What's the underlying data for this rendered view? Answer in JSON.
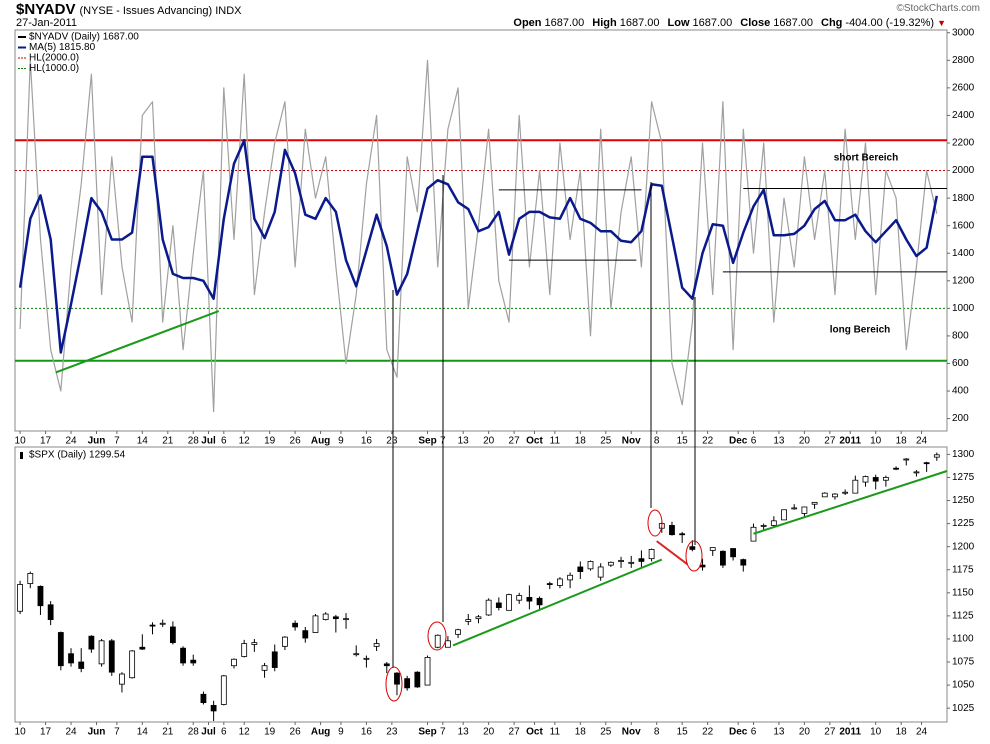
{
  "header": {
    "symbol": "$NYADV",
    "description": "(NYSE - Issues Advancing) INDX",
    "date": "27-Jan-2011",
    "copyright": "©StockCharts.com",
    "quote": [
      {
        "label": "Open",
        "value": "1687.00"
      },
      {
        "label": "High",
        "value": "1687.00"
      },
      {
        "label": "Low",
        "value": "1687.00"
      },
      {
        "label": "Close",
        "value": "1687.00"
      },
      {
        "label": "Chg",
        "value": "-404.00 (-19.32%)"
      }
    ]
  },
  "chart_data": [
    {
      "type": "line",
      "x": [
        0,
        2,
        4,
        6,
        8,
        10,
        12,
        14,
        16,
        18,
        20,
        22,
        24,
        26,
        28,
        30,
        32,
        34,
        36,
        38,
        40,
        42,
        44,
        46,
        48,
        50,
        52,
        54,
        56,
        58,
        60,
        62,
        64,
        66,
        68,
        70,
        72,
        74,
        76,
        78,
        80,
        82,
        84,
        86,
        88,
        90,
        92,
        94,
        96,
        98,
        100,
        102,
        104,
        106,
        108,
        110,
        112,
        114,
        116,
        118,
        120,
        122,
        124,
        126,
        128,
        130,
        132,
        134,
        136,
        138,
        140,
        142,
        144,
        146,
        148,
        150,
        152,
        154,
        156,
        158,
        160,
        162,
        164,
        166,
        168,
        170,
        172,
        174,
        176,
        178,
        180
      ],
      "series": [
        {
          "name": "$NYADV (Daily) 1687.00",
          "color": "#a0a0a0",
          "values": [
            850,
            2800,
            1500,
            700,
            400,
            1300,
            1900,
            2700,
            1100,
            2100,
            1300,
            900,
            2400,
            2500,
            900,
            1600,
            700,
            1400,
            2000,
            250,
            2600,
            1500,
            2700,
            1100,
            1700,
            2200,
            2500,
            1300,
            2300,
            1800,
            2100,
            1300,
            600,
            1100,
            1900,
            2400,
            700,
            500,
            2100,
            1700,
            2800,
            1300,
            2300,
            2600,
            1000,
            1600,
            2300,
            1200,
            900,
            2400,
            1300,
            2000,
            1100,
            2200,
            1500,
            2000,
            800,
            2300,
            1000,
            1700,
            2100,
            1300,
            2500,
            2200,
            600,
            300,
            900,
            2200,
            1100,
            2500,
            700,
            2300,
            1400,
            2200,
            900,
            1800,
            1300,
            2100,
            1500,
            2000,
            1100,
            2300,
            1500,
            2200,
            1100,
            2000,
            1800,
            700,
            1300,
            2000,
            1687
          ]
        },
        {
          "name": "MA(5) 1815.80",
          "color": "#0a1a8c",
          "values": [
            1150,
            1650,
            1820,
            1500,
            680,
            1030,
            1400,
            1800,
            1700,
            1500,
            1500,
            1550,
            2100,
            2100,
            1500,
            1250,
            1220,
            1220,
            1200,
            1070,
            1650,
            2050,
            2220,
            1650,
            1510,
            1700,
            2150,
            1980,
            1680,
            1650,
            1800,
            1700,
            1350,
            1160,
            1420,
            1680,
            1450,
            1100,
            1250,
            1560,
            1870,
            1930,
            1900,
            1770,
            1720,
            1560,
            1590,
            1700,
            1390,
            1650,
            1700,
            1700,
            1660,
            1650,
            1800,
            1650,
            1620,
            1560,
            1560,
            1490,
            1480,
            1560,
            1900,
            1890,
            1520,
            1150,
            1070,
            1400,
            1610,
            1600,
            1330,
            1550,
            1740,
            1860,
            1530,
            1530,
            1540,
            1600,
            1720,
            1780,
            1640,
            1640,
            1680,
            1560,
            1480,
            1560,
            1640,
            1500,
            1380,
            1440,
            1815.8
          ]
        }
      ],
      "hlines": [
        {
          "name": "HL(2000.0)",
          "value": 2000,
          "color": "#cc0000",
          "style": "dotted"
        },
        {
          "name": "HL(1000.0)",
          "value": 1000,
          "color": "#008000",
          "style": "dotted"
        },
        {
          "value": 2220,
          "color": "#dd0000",
          "style": "solid"
        },
        {
          "value": 620,
          "color": "#119911",
          "style": "solid"
        }
      ],
      "segments": [
        {
          "x": [
            7,
            39
          ],
          "y": [
            535,
            980
          ],
          "color": "#1a9a1a"
        },
        {
          "x": [
            94,
            122
          ],
          "y": [
            1860,
            1860
          ],
          "color": "#000000"
        },
        {
          "x": [
            96,
            121
          ],
          "y": [
            1350,
            1350
          ],
          "color": "#000000"
        },
        {
          "x": [
            142,
            182
          ],
          "y": [
            1870,
            1870
          ],
          "color": "#000000"
        },
        {
          "x": [
            138,
            182
          ],
          "y": [
            1265,
            1265
          ],
          "color": "#000000"
        }
      ],
      "annotations": [
        {
          "text": "short Bereich",
          "color": "#cc0000"
        },
        {
          "text": "long Bereich",
          "color": "#118811"
        }
      ],
      "xlim": [
        -1,
        182
      ],
      "ylim": [
        110,
        3020
      ],
      "yticks": [
        200,
        400,
        600,
        800,
        1000,
        1200,
        1400,
        1600,
        1800,
        2000,
        2200,
        2400,
        2600,
        2800,
        3000
      ],
      "xticks": [
        {
          "value": 0,
          "label": "10"
        },
        {
          "value": 5,
          "label": "17"
        },
        {
          "value": 10,
          "label": "24"
        },
        {
          "value": 15,
          "label": "Jun"
        },
        {
          "value": 19,
          "label": "7"
        },
        {
          "value": 24,
          "label": "14"
        },
        {
          "value": 29,
          "label": "21"
        },
        {
          "value": 34,
          "label": "28"
        },
        {
          "value": 37,
          "label": "Jul"
        },
        {
          "value": 40,
          "label": "6"
        },
        {
          "value": 44,
          "label": "12"
        },
        {
          "value": 49,
          "label": "19"
        },
        {
          "value": 54,
          "label": "26"
        },
        {
          "value": 59,
          "label": "Aug"
        },
        {
          "value": 63,
          "label": "9"
        },
        {
          "value": 68,
          "label": "16"
        },
        {
          "value": 73,
          "label": "23"
        },
        {
          "value": 80,
          "label": "Sep"
        },
        {
          "value": 83,
          "label": "7"
        },
        {
          "value": 87,
          "label": "13"
        },
        {
          "value": 92,
          "label": "20"
        },
        {
          "value": 97,
          "label": "27"
        },
        {
          "value": 101,
          "label": "Oct"
        },
        {
          "value": 105,
          "label": "11"
        },
        {
          "value": 110,
          "label": "18"
        },
        {
          "value": 115,
          "label": "25"
        },
        {
          "value": 120,
          "label": "Nov"
        },
        {
          "value": 125,
          "label": "8"
        },
        {
          "value": 130,
          "label": "15"
        },
        {
          "value": 135,
          "label": "22"
        },
        {
          "value": 141,
          "label": "Dec"
        },
        {
          "value": 144,
          "label": "6"
        },
        {
          "value": 149,
          "label": "13"
        },
        {
          "value": 154,
          "label": "20"
        },
        {
          "value": 159,
          "label": "27"
        },
        {
          "value": 163,
          "label": "2011"
        },
        {
          "value": 168,
          "label": "10"
        },
        {
          "value": 173,
          "label": "18"
        },
        {
          "value": 177,
          "label": "24"
        }
      ]
    },
    {
      "type": "candlestick",
      "name": "$SPX (Daily) 1299.54",
      "x": [
        0,
        2,
        4,
        6,
        8,
        10,
        12,
        14,
        16,
        18,
        20,
        22,
        24,
        26,
        28,
        30,
        32,
        34,
        36,
        38,
        40,
        42,
        44,
        46,
        48,
        50,
        52,
        54,
        56,
        58,
        60,
        62,
        64,
        66,
        68,
        70,
        72,
        74,
        76,
        78,
        80,
        82,
        84,
        86,
        88,
        90,
        92,
        94,
        96,
        98,
        100,
        102,
        104,
        106,
        108,
        110,
        112,
        114,
        116,
        118,
        120,
        122,
        124,
        126,
        128,
        130,
        132,
        134,
        136,
        138,
        140,
        142,
        144,
        146,
        148,
        150,
        152,
        154,
        156,
        158,
        160,
        162,
        164,
        166,
        168,
        170,
        172,
        174,
        176,
        178,
        180
      ],
      "open": [
        1130,
        1160,
        1157,
        1137,
        1107,
        1084,
        1075,
        1103,
        1073,
        1098,
        1051,
        1058,
        1091,
        1115,
        1116,
        1113,
        1090,
        1077,
        1040,
        1028,
        1029,
        1071,
        1081,
        1094,
        1066,
        1086,
        1092,
        1117,
        1109,
        1107,
        1121,
        1124,
        1122,
        1084,
        1079,
        1092,
        1073,
        1063,
        1057,
        1064,
        1050,
        1091,
        1091,
        1105,
        1119,
        1122,
        1126,
        1139,
        1131,
        1142,
        1145,
        1144,
        1160,
        1158,
        1164,
        1178,
        1176,
        1167,
        1180,
        1185,
        1183,
        1187,
        1187,
        1220,
        1223,
        1214,
        1200,
        1180,
        1196,
        1195,
        1198,
        1186,
        1206,
        1223,
        1223,
        1229,
        1241,
        1236,
        1246,
        1254,
        1254,
        1259,
        1258,
        1270,
        1275,
        1272,
        1285,
        1294,
        1280,
        1291,
        1297
      ],
      "high": [
        1163,
        1173,
        1158,
        1141,
        1108,
        1090,
        1090,
        1104,
        1100,
        1100,
        1064,
        1088,
        1105,
        1118,
        1121,
        1119,
        1092,
        1083,
        1043,
        1033,
        1061,
        1079,
        1099,
        1100,
        1074,
        1094,
        1103,
        1120,
        1113,
        1127,
        1129,
        1126,
        1128,
        1093,
        1082,
        1100,
        1075,
        1064,
        1060,
        1065,
        1082,
        1105,
        1103,
        1111,
        1127,
        1126,
        1144,
        1145,
        1149,
        1150,
        1158,
        1146,
        1162,
        1167,
        1172,
        1184,
        1185,
        1182,
        1184,
        1189,
        1190,
        1196,
        1198,
        1227,
        1227,
        1216,
        1207,
        1187,
        1199,
        1196,
        1198,
        1187,
        1225,
        1225,
        1233,
        1240,
        1246,
        1243,
        1248,
        1259,
        1258,
        1262,
        1277,
        1277,
        1278,
        1277,
        1287,
        1296,
        1283,
        1292,
        1302
      ],
      "low": [
        1127,
        1155,
        1126,
        1115,
        1066,
        1070,
        1064,
        1085,
        1070,
        1060,
        1042,
        1057,
        1088,
        1105,
        1113,
        1094,
        1071,
        1071,
        1029,
        1011,
        1028,
        1068,
        1080,
        1086,
        1058,
        1065,
        1088,
        1109,
        1096,
        1107,
        1120,
        1107,
        1111,
        1081,
        1069,
        1087,
        1063,
        1039,
        1044,
        1047,
        1050,
        1090,
        1091,
        1101,
        1115,
        1117,
        1125,
        1131,
        1131,
        1138,
        1132,
        1131,
        1154,
        1155,
        1155,
        1165,
        1174,
        1163,
        1178,
        1177,
        1177,
        1177,
        1184,
        1215,
        1212,
        1204,
        1195,
        1174,
        1190,
        1177,
        1185,
        1173,
        1206,
        1218,
        1222,
        1229,
        1240,
        1232,
        1241,
        1254,
        1251,
        1256,
        1258,
        1265,
        1262,
        1265,
        1283,
        1288,
        1276,
        1281,
        1293
      ],
      "close": [
        1159,
        1171,
        1136,
        1121,
        1071,
        1074,
        1068,
        1089,
        1098,
        1064,
        1062,
        1087,
        1089,
        1114,
        1117,
        1096,
        1074,
        1074,
        1031,
        1022,
        1060,
        1078,
        1095,
        1096,
        1071,
        1069,
        1102,
        1113,
        1101,
        1125,
        1127,
        1122,
        1122,
        1084,
        1079,
        1095,
        1071,
        1051,
        1047,
        1048,
        1080,
        1104,
        1098,
        1110,
        1121,
        1124,
        1142,
        1134,
        1148,
        1147,
        1141,
        1137,
        1159,
        1165,
        1169,
        1173,
        1184,
        1178,
        1183,
        1185,
        1183,
        1184,
        1197,
        1225,
        1213,
        1213,
        1197,
        1178,
        1199,
        1180,
        1189,
        1180,
        1221,
        1223,
        1228,
        1240,
        1242,
        1243,
        1248,
        1258,
        1257,
        1259,
        1272,
        1276,
        1271,
        1275,
        1284,
        1295,
        1281,
        1290,
        1299.54
      ],
      "segments": [
        {
          "x": [
            85,
            126
          ],
          "y": [
            1093,
            1186
          ],
          "color": "#1a9a1a"
        },
        {
          "x": [
            144,
            182
          ],
          "y": [
            1214,
            1282
          ],
          "color": "#1a9a1a"
        },
        {
          "x": [
            125,
            131
          ],
          "y": [
            1206,
            1181
          ],
          "color": "#dd2222"
        }
      ],
      "xlim": [
        -1,
        182
      ],
      "ylim": [
        1010,
        1308
      ],
      "yticks": [
        1025,
        1050,
        1075,
        1100,
        1125,
        1150,
        1175,
        1200,
        1225,
        1250,
        1275,
        1300
      ],
      "xticks": [
        {
          "value": 0,
          "label": "10"
        },
        {
          "value": 5,
          "label": "17"
        },
        {
          "value": 10,
          "label": "24"
        },
        {
          "value": 15,
          "label": "Jun"
        },
        {
          "value": 19,
          "label": "7"
        },
        {
          "value": 24,
          "label": "14"
        },
        {
          "value": 29,
          "label": "21"
        },
        {
          "value": 34,
          "label": "28"
        },
        {
          "value": 37,
          "label": "Jul"
        },
        {
          "value": 40,
          "label": "6"
        },
        {
          "value": 44,
          "label": "12"
        },
        {
          "value": 49,
          "label": "19"
        },
        {
          "value": 54,
          "label": "26"
        },
        {
          "value": 59,
          "label": "Aug"
        },
        {
          "value": 63,
          "label": "9"
        },
        {
          "value": 68,
          "label": "16"
        },
        {
          "value": 73,
          "label": "23"
        },
        {
          "value": 80,
          "label": "Sep"
        },
        {
          "value": 83,
          "label": "7"
        },
        {
          "value": 87,
          "label": "13"
        },
        {
          "value": 92,
          "label": "20"
        },
        {
          "value": 97,
          "label": "27"
        },
        {
          "value": 101,
          "label": "Oct"
        },
        {
          "value": 105,
          "label": "11"
        },
        {
          "value": 110,
          "label": "18"
        },
        {
          "value": 115,
          "label": "25"
        },
        {
          "value": 120,
          "label": "Nov"
        },
        {
          "value": 125,
          "label": "8"
        },
        {
          "value": 130,
          "label": "15"
        },
        {
          "value": 135,
          "label": "22"
        },
        {
          "value": 141,
          "label": "Dec"
        },
        {
          "value": 144,
          "label": "6"
        },
        {
          "value": 149,
          "label": "13"
        },
        {
          "value": 154,
          "label": "20"
        },
        {
          "value": 159,
          "label": "27"
        },
        {
          "value": 163,
          "label": "2011"
        },
        {
          "value": 168,
          "label": "10"
        },
        {
          "value": 173,
          "label": "18"
        },
        {
          "value": 177,
          "label": "24"
        }
      ]
    }
  ]
}
